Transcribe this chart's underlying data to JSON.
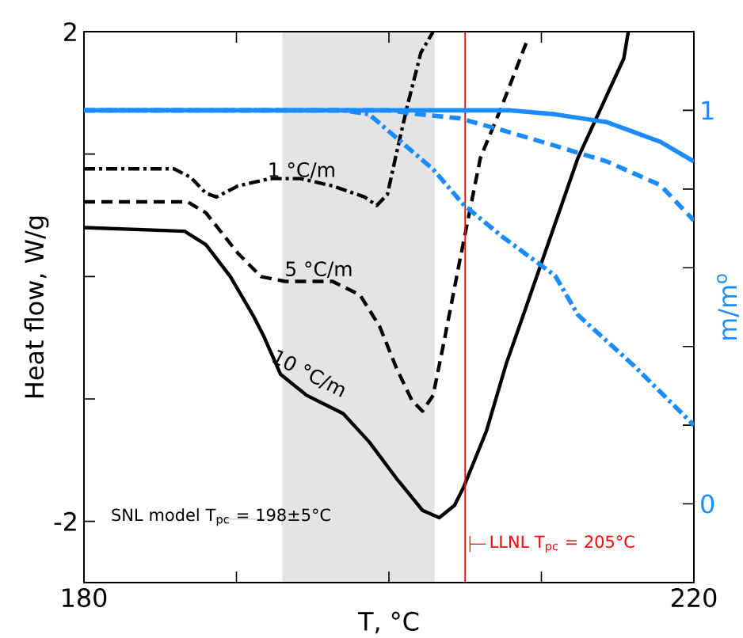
{
  "chart_data": {
    "type": "line",
    "xlabel": "T, °C",
    "ylabel": "Heat flow, W/g",
    "y2label": "m/m$^{o}$",
    "xlim": [
      180,
      220
    ],
    "ylim": [
      -2.5,
      2
    ],
    "y2lim": [
      -0.2,
      1.2
    ],
    "xticks": [
      180,
      {
        "value": 190,
        "label": null
      },
      {
        "value": 200,
        "label": null
      },
      {
        "value": 210,
        "label": null
      },
      220
    ],
    "yticks": [
      -2,
      {
        "value": -1,
        "label": null
      },
      {
        "value": 0,
        "label": null
      },
      {
        "value": 1,
        "label": null
      },
      2
    ],
    "y2ticks": [
      0,
      {
        "value": 0.2,
        "label": null
      },
      {
        "value": 0.4,
        "label": null
      },
      {
        "value": 0.6,
        "label": null
      },
      {
        "value": 0.8,
        "label": null
      },
      1
    ],
    "series": [
      {
        "color": "#000000",
        "line_style": "dashdot",
        "x": [
          180,
          185.9,
          187.0,
          188.0,
          188.7,
          190.1,
          192.2,
          194.2,
          196.3,
          198.4,
          199.2,
          199.9,
          200.5,
          201.2,
          202.1,
          202.9
        ],
        "values": [
          0.88,
          0.88,
          0.81,
          0.68,
          0.65,
          0.74,
          0.8,
          0.8,
          0.74,
          0.65,
          0.58,
          0.67,
          1.01,
          1.39,
          1.83,
          2.0
        ]
      },
      {
        "color": "#000000",
        "line_style": "dashed",
        "x": [
          180,
          186.8,
          188.0,
          190.1,
          191.6,
          193.2,
          196.3,
          198.1,
          199.4,
          200.5,
          201.5,
          202.2,
          202.9,
          203.6,
          204.6,
          206.0,
          207.4,
          209.1
        ],
        "values": [
          0.61,
          0.61,
          0.52,
          0.19,
          0.0,
          -0.04,
          -0.04,
          -0.15,
          -0.41,
          -0.75,
          -1.01,
          -1.1,
          -0.97,
          -0.54,
          0.1,
          0.97,
          1.39,
          1.94
        ]
      },
      {
        "color": "#000000",
        "line_style": "solid",
        "x": [
          180,
          186.6,
          188.0,
          189.6,
          191.1,
          191.8,
          192.9,
          194.6,
          197.0,
          198.7,
          200.5,
          202.2,
          203.3,
          204.3,
          204.9,
          206.4,
          207.7,
          208.8,
          212.4,
          215.4,
          215.7
        ],
        "values": [
          0.4,
          0.37,
          0.26,
          0.0,
          -0.32,
          -0.49,
          -0.8,
          -0.97,
          -1.12,
          -1.35,
          -1.65,
          -1.91,
          -1.97,
          -1.87,
          -1.72,
          -1.26,
          -0.71,
          -0.32,
          0.97,
          1.78,
          2.0
        ]
      },
      {
        "color": "#1a8cff",
        "line_style": "solid",
        "axis": "y2",
        "x": [
          180,
          200,
          208,
          210.9,
          214.3,
          217.8,
          220
        ],
        "values": [
          1.0,
          1.0,
          1.0,
          0.99,
          0.97,
          0.92,
          0.87
        ]
      },
      {
        "color": "#1a8cff",
        "line_style": "dashed",
        "axis": "y2",
        "x": [
          180,
          200,
          202,
          204.6,
          207.4,
          210.9,
          214.3,
          217.8,
          220
        ],
        "values": [
          1.0,
          1.0,
          0.99,
          0.98,
          0.95,
          0.91,
          0.87,
          0.81,
          0.72
        ]
      },
      {
        "color": "#1a8cff",
        "line_style": "dashdot",
        "axis": "y2",
        "x": [
          180,
          197,
          198.7,
          200.8,
          202.9,
          204.9,
          207.4,
          210.9,
          212.4,
          216.1,
          220
        ],
        "values": [
          1.0,
          1.0,
          0.99,
          0.92,
          0.85,
          0.76,
          0.68,
          0.58,
          0.48,
          0.35,
          0.2
        ]
      }
    ],
    "annotations": [
      "1 °C/m",
      "5 °C/m",
      "10 °C/m"
    ],
    "bands": [
      {
        "axis": "x",
        "from": 193,
        "to": 203,
        "color": "#e4e4e4",
        "label": "SNL model T$_{pc}$ = 198±5°C"
      }
    ],
    "ref_lines": [
      {
        "axis": "x",
        "value": 205,
        "color": "#ff0000",
        "label": "LLNL T$_{pc}$ = 205°C"
      }
    ]
  }
}
